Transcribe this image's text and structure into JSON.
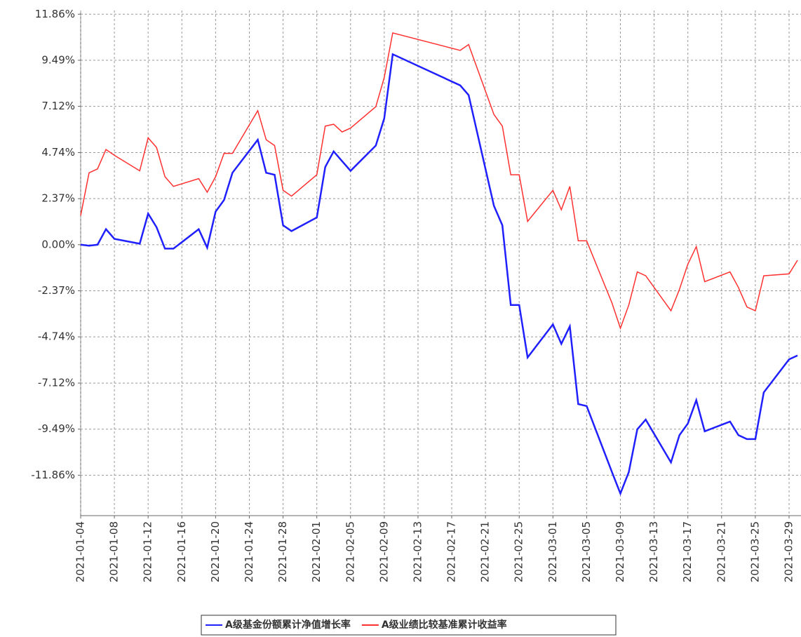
{
  "chart_data": {
    "type": "line",
    "x": [
      "2021-01-04",
      "2021-01-05",
      "2021-01-06",
      "2021-01-07",
      "2021-01-08",
      "2021-01-11",
      "2021-01-12",
      "2021-01-13",
      "2021-01-14",
      "2021-01-15",
      "2021-01-18",
      "2021-01-19",
      "2021-01-20",
      "2021-01-21",
      "2021-01-22",
      "2021-01-25",
      "2021-01-26",
      "2021-01-27",
      "2021-01-28",
      "2021-01-29",
      "2021-02-01",
      "2021-02-02",
      "2021-02-03",
      "2021-02-04",
      "2021-02-05",
      "2021-02-08",
      "2021-02-09",
      "2021-02-10",
      "2021-02-18",
      "2021-02-19",
      "2021-02-22",
      "2021-02-23",
      "2021-02-24",
      "2021-02-25",
      "2021-02-26",
      "2021-03-01",
      "2021-03-02",
      "2021-03-03",
      "2021-03-04",
      "2021-03-05",
      "2021-03-08",
      "2021-03-09",
      "2021-03-10",
      "2021-03-11",
      "2021-03-12",
      "2021-03-15",
      "2021-03-16",
      "2021-03-17",
      "2021-03-18",
      "2021-03-19",
      "2021-03-22",
      "2021-03-23",
      "2021-03-24",
      "2021-03-25",
      "2021-03-26",
      "2021-03-29",
      "2021-03-30"
    ],
    "series": [
      {
        "name": "A级基金份额累计净值增长率",
        "color": "#2020ff",
        "values": [
          0,
          -0.05,
          0,
          0.8,
          0.3,
          0.05,
          1.6,
          0.9,
          -0.2,
          -0.2,
          0.8,
          -0.15,
          1.7,
          2.3,
          3.7,
          5.4,
          3.7,
          3.6,
          1.0,
          0.7,
          1.4,
          4.0,
          4.8,
          4.3,
          3.8,
          5.1,
          6.5,
          9.8,
          8.2,
          7.7,
          2.0,
          1.0,
          -3.1,
          -3.1,
          -5.8,
          -4.1,
          -5.1,
          -4.2,
          -8.2,
          -8.3,
          -11.7,
          -12.8,
          -11.7,
          -9.5,
          -9.0,
          -11.2,
          -9.8,
          -9.2,
          -8.0,
          -9.6,
          -9.1,
          -9.8,
          -10.0,
          -10.0,
          -7.6,
          -5.9,
          -5.7
        ]
      },
      {
        "name": "A级业绩比较基准累计收益率",
        "color": "#ff3030",
        "values": [
          1.5,
          3.7,
          3.9,
          4.9,
          4.6,
          3.8,
          5.5,
          5.0,
          3.5,
          3.0,
          3.4,
          2.7,
          3.5,
          4.7,
          4.7,
          6.9,
          5.4,
          5.1,
          2.8,
          2.5,
          3.6,
          6.1,
          6.2,
          5.8,
          6.0,
          7.1,
          8.6,
          10.9,
          10.0,
          10.3,
          6.7,
          6.1,
          3.6,
          3.6,
          1.2,
          2.8,
          1.8,
          3.0,
          0.2,
          0.2,
          -3.0,
          -4.3,
          -3.1,
          -1.4,
          -1.6,
          -3.4,
          -2.3,
          -1.0,
          -0.1,
          -1.9,
          -1.4,
          -2.2,
          -3.2,
          -3.4,
          -1.6,
          -1.5,
          -0.8
        ]
      }
    ],
    "xlim": [
      "2021-01-04",
      "2021-03-30"
    ],
    "xticks": [
      "2021-01-04",
      "2021-01-08",
      "2021-01-12",
      "2021-01-16",
      "2021-01-20",
      "2021-01-24",
      "2021-01-28",
      "2021-02-01",
      "2021-02-05",
      "2021-02-09",
      "2021-02-13",
      "2021-02-17",
      "2021-02-21",
      "2021-02-25",
      "2021-03-01",
      "2021-03-05",
      "2021-03-09",
      "2021-03-13",
      "2021-03-17",
      "2021-03-21",
      "2021-03-25",
      "2021-03-29"
    ],
    "ylim": [
      -13.94,
      12.05
    ],
    "yticks": [
      {
        "value": -11.86,
        "label": "-11.86%"
      },
      {
        "value": -9.49,
        "label": "-9.49%"
      },
      {
        "value": -7.12,
        "label": "-7.12%"
      },
      {
        "value": -4.74,
        "label": "-4.74%"
      },
      {
        "value": -2.37,
        "label": "-2.37%"
      },
      {
        "value": 0,
        "label": "0.00%"
      },
      {
        "value": 2.37,
        "label": "2.37%"
      },
      {
        "value": 4.74,
        "label": "4.74%"
      },
      {
        "value": 7.12,
        "label": "7.12%"
      },
      {
        "value": 9.49,
        "label": "9.49%"
      },
      {
        "value": 11.86,
        "label": "11.86%"
      }
    ],
    "grid": true
  }
}
